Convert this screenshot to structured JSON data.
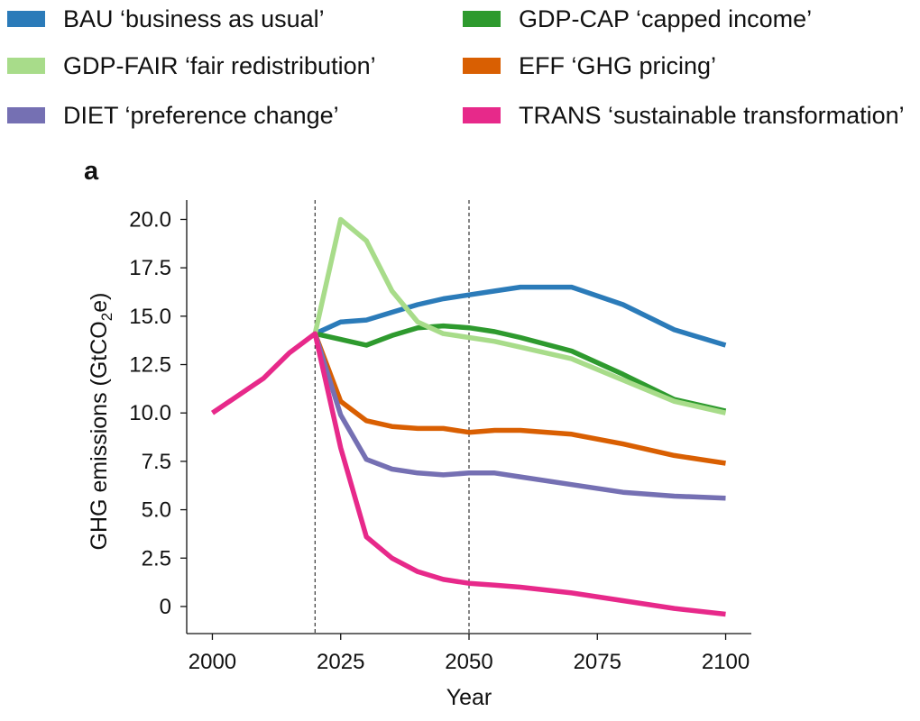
{
  "panel_label": "a",
  "legend": [
    {
      "name": "BAU ‘business as usual’",
      "color": "#2b7bb9"
    },
    {
      "name": "GDP-CAP ‘capped income’",
      "color": "#2e9a2e"
    },
    {
      "name": "GDP-FAIR ‘fair redistribution’",
      "color": "#a8dc8a"
    },
    {
      "name": "EFF ‘GHG pricing’",
      "color": "#d95f02"
    },
    {
      "name": "DIET ‘preference change’",
      "color": "#7570b3"
    },
    {
      "name": "TRANS ‘sustainable transformation’",
      "color": "#e7298a"
    }
  ],
  "chart_data": {
    "type": "line",
    "title": "",
    "xlabel": "Year",
    "ylabel": "GHG emissions (GtCO₂e)",
    "ylabel_main": "GHG emissions (GtCO",
    "ylabel_sub": "2",
    "ylabel_end": "e)",
    "xlim": [
      1995,
      2105
    ],
    "ylim": [
      -1.4,
      21.0
    ],
    "xticks": [
      2000,
      2025,
      2050,
      2075,
      2100
    ],
    "xtick_labels": [
      "2000",
      "2025",
      "2050",
      "2075",
      "2100"
    ],
    "yticks": [
      0,
      2.5,
      5,
      7.5,
      10,
      12.5,
      15,
      17.5,
      20
    ],
    "ytick_labels": [
      "0",
      "2.5",
      "5.0",
      "7.5",
      "10.0",
      "12.5",
      "15.0",
      "17.5",
      "20.0"
    ],
    "vlines": [
      2020,
      2050
    ],
    "grid": false,
    "series": [
      {
        "name": "BAU",
        "color": "#2b7bb9",
        "x": [
          2020,
          2025,
          2030,
          2035,
          2040,
          2045,
          2050,
          2055,
          2060,
          2070,
          2080,
          2090,
          2100
        ],
        "y": [
          14.1,
          14.7,
          14.8,
          15.2,
          15.6,
          15.9,
          16.1,
          16.3,
          16.5,
          16.5,
          15.6,
          14.3,
          13.5
        ]
      },
      {
        "name": "GDP-CAP",
        "color": "#2e9a2e",
        "x": [
          2020,
          2025,
          2030,
          2035,
          2040,
          2045,
          2050,
          2055,
          2060,
          2070,
          2080,
          2090,
          2100
        ],
        "y": [
          14.1,
          13.8,
          13.5,
          14.0,
          14.4,
          14.5,
          14.4,
          14.2,
          13.9,
          13.2,
          12.0,
          10.7,
          10.1
        ]
      },
      {
        "name": "GDP-FAIR",
        "color": "#a8dc8a",
        "x": [
          2020,
          2025,
          2030,
          2035,
          2040,
          2045,
          2050,
          2055,
          2060,
          2070,
          2080,
          2090,
          2100
        ],
        "y": [
          14.1,
          20.0,
          18.9,
          16.3,
          14.7,
          14.1,
          13.9,
          13.7,
          13.4,
          12.8,
          11.7,
          10.6,
          10.0
        ]
      },
      {
        "name": "EFF",
        "color": "#d95f02",
        "x": [
          2020,
          2025,
          2030,
          2035,
          2040,
          2045,
          2050,
          2055,
          2060,
          2070,
          2080,
          2090,
          2100
        ],
        "y": [
          14.1,
          10.6,
          9.6,
          9.3,
          9.2,
          9.2,
          9.0,
          9.1,
          9.1,
          8.9,
          8.4,
          7.8,
          7.4
        ]
      },
      {
        "name": "DIET",
        "color": "#7570b3",
        "x": [
          2020,
          2025,
          2030,
          2035,
          2040,
          2045,
          2050,
          2055,
          2060,
          2070,
          2080,
          2090,
          2100
        ],
        "y": [
          14.1,
          9.9,
          7.6,
          7.1,
          6.9,
          6.8,
          6.9,
          6.9,
          6.7,
          6.3,
          5.9,
          5.7,
          5.6
        ]
      },
      {
        "name": "TRANS",
        "color": "#e7298a",
        "x": [
          2000,
          2010,
          2015,
          2020,
          2025,
          2030,
          2035,
          2040,
          2045,
          2050,
          2055,
          2060,
          2070,
          2080,
          2090,
          2100
        ],
        "y": [
          10.0,
          11.8,
          13.1,
          14.1,
          8.2,
          3.6,
          2.5,
          1.8,
          1.4,
          1.2,
          1.1,
          1.0,
          0.7,
          0.3,
          -0.1,
          -0.4
        ]
      }
    ]
  }
}
